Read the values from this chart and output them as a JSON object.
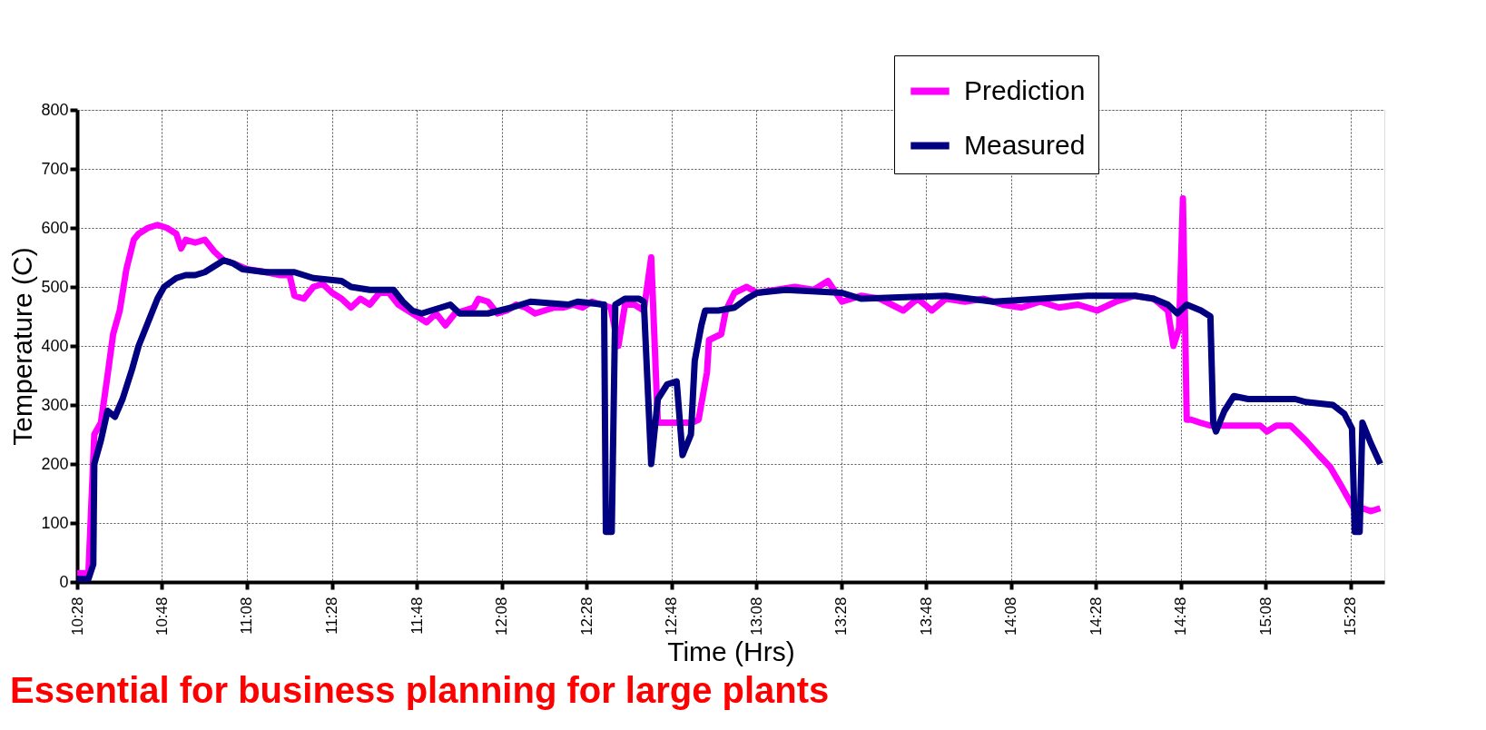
{
  "chart_data": {
    "type": "line",
    "xlabel": "Time (Hrs)",
    "ylabel": "Temperature (C)",
    "annotations": [
      "Essential for business planning for large plants"
    ],
    "xlim": [
      10.4667,
      15.6
    ],
    "ylim": [
      0,
      800
    ],
    "xticks": [
      {
        "value": 10.4667,
        "label": "10:28"
      },
      {
        "value": 10.8,
        "label": "10:48"
      },
      {
        "value": 11.1333,
        "label": "11:08"
      },
      {
        "value": 11.4667,
        "label": "11:28"
      },
      {
        "value": 11.8,
        "label": "11:48"
      },
      {
        "value": 12.1333,
        "label": "12:08"
      },
      {
        "value": 12.4667,
        "label": "12:28"
      },
      {
        "value": 12.8,
        "label": "12:48"
      },
      {
        "value": 13.1333,
        "label": "13:08"
      },
      {
        "value": 13.4667,
        "label": "13:28"
      },
      {
        "value": 13.8,
        "label": "13:48"
      },
      {
        "value": 14.1333,
        "label": "14:08"
      },
      {
        "value": 14.4667,
        "label": "14:28"
      },
      {
        "value": 14.8,
        "label": "14:48"
      },
      {
        "value": 15.1333,
        "label": "15:08"
      },
      {
        "value": 15.4667,
        "label": "15:28"
      }
    ],
    "yticks": [
      0,
      100,
      200,
      300,
      400,
      500,
      600,
      700,
      800
    ],
    "grid": true,
    "legend": "top right",
    "line_style": "solid",
    "series": [
      {
        "name": "Prediction",
        "color": "#ff00ff",
        "x": [
          10.467,
          10.511,
          10.534,
          10.56,
          10.586,
          10.608,
          10.634,
          10.66,
          10.689,
          10.708,
          10.745,
          10.782,
          10.819,
          10.856,
          10.875,
          10.893,
          10.93,
          10.968,
          11.005,
          11.042,
          11.079,
          11.134,
          11.209,
          11.264,
          11.301,
          11.32,
          11.357,
          11.394,
          11.431,
          11.468,
          11.505,
          11.542,
          11.579,
          11.616,
          11.654,
          11.691,
          11.728,
          11.765,
          11.802,
          11.839,
          11.876,
          11.913,
          11.95,
          11.987,
          12.024,
          12.043,
          12.08,
          12.117,
          12.154,
          12.191,
          12.228,
          12.265,
          12.302,
          12.34,
          12.377,
          12.414,
          12.451,
          12.488,
          12.525,
          12.562,
          12.592,
          12.618,
          12.655,
          12.692,
          12.721,
          12.747,
          12.803,
          12.881,
          12.907,
          12.94,
          12.948,
          12.996,
          13.014,
          13.048,
          13.096,
          13.137,
          13.211,
          13.285,
          13.359,
          13.415,
          13.47,
          13.545,
          13.619,
          13.711,
          13.767,
          13.823,
          13.878,
          13.953,
          14.027,
          14.101,
          14.175,
          14.249,
          14.323,
          14.397,
          14.472,
          14.546,
          14.62,
          14.694,
          14.75,
          14.772,
          14.794,
          14.809,
          14.824,
          14.842,
          14.876,
          14.917,
          14.991,
          15.065,
          15.113,
          15.139,
          15.176,
          15.232,
          15.291,
          15.343,
          15.387,
          15.428,
          15.454,
          15.48,
          15.514,
          15.547,
          15.584
        ],
        "values": [
          15,
          15,
          250,
          270,
          350,
          420,
          460,
          530,
          580,
          590,
          600,
          605,
          600,
          590,
          565,
          580,
          575,
          580,
          560,
          545,
          540,
          530,
          525,
          520,
          520,
          485,
          480,
          500,
          505,
          490,
          480,
          465,
          480,
          470,
          490,
          490,
          470,
          460,
          450,
          440,
          455,
          435,
          455,
          460,
          465,
          480,
          475,
          455,
          460,
          470,
          465,
          455,
          460,
          465,
          465,
          470,
          465,
          475,
          470,
          465,
          400,
          470,
          470,
          460,
          550,
          270,
          270,
          270,
          275,
          355,
          410,
          420,
          460,
          490,
          500,
          490,
          495,
          500,
          495,
          510,
          475,
          485,
          480,
          460,
          480,
          460,
          480,
          475,
          480,
          470,
          465,
          475,
          465,
          470,
          460,
          475,
          485,
          480,
          460,
          400,
          430,
          650,
          275,
          275,
          270,
          265,
          265,
          265,
          265,
          255,
          265,
          265,
          240,
          215,
          195,
          165,
          145,
          125,
          125,
          120,
          125
        ]
      },
      {
        "name": "Measured",
        "color": "#000080",
        "x": [
          10.467,
          10.511,
          10.53,
          10.534,
          10.56,
          10.586,
          10.615,
          10.645,
          10.682,
          10.708,
          10.745,
          10.782,
          10.808,
          10.856,
          10.893,
          10.93,
          10.968,
          11.005,
          11.042,
          11.079,
          11.116,
          11.209,
          11.32,
          11.394,
          11.505,
          11.542,
          11.616,
          11.709,
          11.746,
          11.783,
          11.82,
          11.857,
          11.895,
          11.932,
          11.969,
          12.08,
          12.173,
          12.247,
          12.395,
          12.432,
          12.536,
          12.543,
          12.566,
          12.58,
          12.618,
          12.673,
          12.692,
          12.721,
          12.747,
          12.784,
          12.821,
          12.844,
          12.877,
          12.892,
          12.918,
          12.933,
          12.985,
          13.048,
          13.096,
          13.137,
          13.248,
          13.47,
          13.545,
          13.878,
          14.064,
          14.249,
          14.434,
          14.62,
          14.694,
          14.75,
          14.787,
          14.824,
          14.88,
          14.917,
          14.928,
          14.939,
          14.972,
          15.009,
          15.065,
          15.25,
          15.291,
          15.398,
          15.443,
          15.473,
          15.484,
          15.503,
          15.514,
          15.547,
          15.584
        ],
        "values": [
          5,
          5,
          30,
          200,
          240,
          290,
          280,
          310,
          360,
          400,
          440,
          480,
          500,
          515,
          520,
          520,
          525,
          535,
          545,
          540,
          530,
          525,
          525,
          515,
          510,
          500,
          495,
          495,
          475,
          460,
          455,
          460,
          465,
          470,
          455,
          455,
          465,
          475,
          470,
          475,
          470,
          85,
          85,
          470,
          480,
          480,
          475,
          200,
          310,
          335,
          340,
          215,
          250,
          375,
          435,
          460,
          460,
          465,
          480,
          490,
          495,
          490,
          480,
          485,
          475,
          480,
          485,
          485,
          480,
          470,
          455,
          470,
          460,
          450,
          270,
          255,
          290,
          315,
          310,
          310,
          305,
          300,
          285,
          260,
          85,
          85,
          270,
          235,
          200
        ]
      }
    ]
  }
}
